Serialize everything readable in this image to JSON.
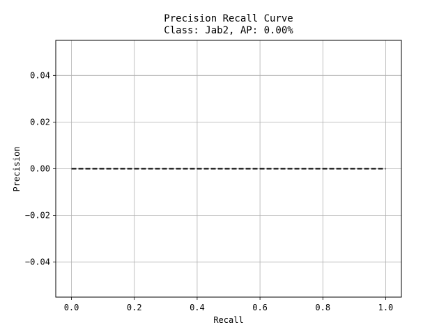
{
  "chart_data": {
    "type": "line",
    "title": "Precision Recall Curve",
    "subtitle": "Class: Jab2, AP: 0.00%",
    "xlabel": "Recall",
    "ylabel": "Precision",
    "xlim": [
      -0.05,
      1.05
    ],
    "ylim": [
      -0.055,
      0.055
    ],
    "xticks": [
      0.0,
      0.2,
      0.4,
      0.6,
      0.8,
      1.0
    ],
    "xtick_labels": [
      "0.0",
      "0.2",
      "0.4",
      "0.6",
      "0.8",
      "1.0"
    ],
    "yticks": [
      -0.04,
      -0.02,
      0.0,
      0.02,
      0.04
    ],
    "ytick_labels": [
      "−0.04",
      "−0.02",
      "0.00",
      "0.02",
      "0.04"
    ],
    "grid": true,
    "series": [
      {
        "x": [
          0.0,
          1.0
        ],
        "y": [
          0.0,
          0.0
        ],
        "color": "#000000",
        "linestyle": "dashed"
      }
    ]
  }
}
